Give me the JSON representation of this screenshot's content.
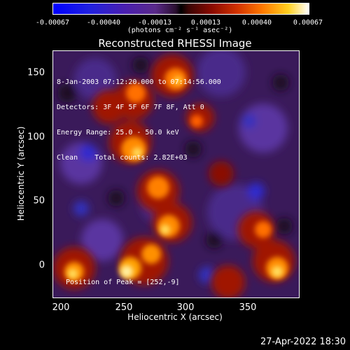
{
  "colorbar": {
    "ticks": [
      "-0.00067",
      "-0.00040",
      "-0.00013",
      "0.00013",
      "0.00040",
      "0.00067"
    ],
    "units": "(photons cm⁻² s⁻¹ asec⁻²)"
  },
  "title": "Reconstructed RHESSI Image",
  "info": {
    "line1": "8-Jan-2003 07:12:20.000 to 07:14:56.000",
    "line2": "Detectors: 3F 4F 5F 6F 7F 8F, Att 0",
    "line3": "Energy Range: 25.0 - 50.0 keV",
    "line4": "Clean    Total counts: 2.82E+03"
  },
  "position_label": "Position of Peak = [252,-9]",
  "axes": {
    "ylabel": "Heliocentric Y (arcsec)",
    "xlabel": "Heliocentric X (arcsec)",
    "yticks": [
      "150",
      "100",
      "50",
      "0"
    ],
    "xticks": [
      "200",
      "250",
      "300",
      "350"
    ]
  },
  "timestamp": "27-Apr-2022 18:30",
  "colors": {
    "background": "#000000",
    "text": "#ffffff"
  }
}
